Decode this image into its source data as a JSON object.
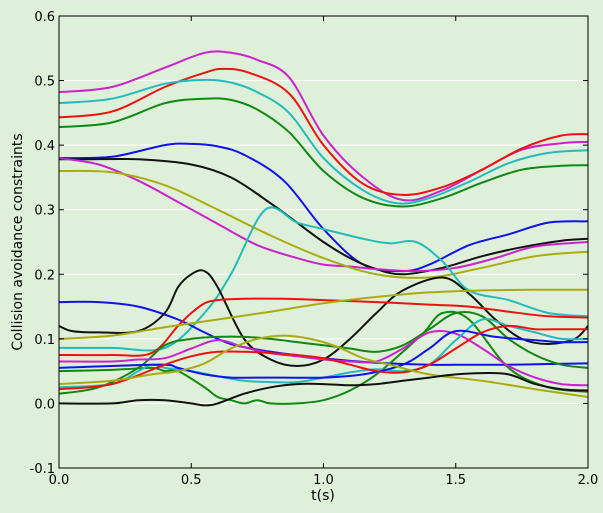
{
  "chart_data": {
    "type": "line",
    "xlabel": "t(s)",
    "ylabel": "Collision avoidance constraints",
    "xlim": [
      0.0,
      2.0
    ],
    "ylim": [
      -0.1,
      0.6
    ],
    "xticks": [
      "0.0",
      "0.5",
      "1.0",
      "1.5",
      "2.0"
    ],
    "yticks": [
      "-0.1",
      "0.0",
      "0.1",
      "0.2",
      "0.3",
      "0.4",
      "0.5",
      "0.6"
    ],
    "grid": true,
    "background": "#dff0da",
    "series": [
      {
        "color": "#cc22cc",
        "x": [
          0,
          0.2,
          0.4,
          0.55,
          0.65,
          0.75,
          0.87,
          1.0,
          1.15,
          1.3,
          1.45,
          1.6,
          1.75,
          1.9,
          2.0
        ],
        "y": [
          0.482,
          0.49,
          0.52,
          0.543,
          0.543,
          0.532,
          0.505,
          0.415,
          0.35,
          0.315,
          0.33,
          0.362,
          0.393,
          0.403,
          0.405
        ]
      },
      {
        "color": "#ee1111",
        "x": [
          0,
          0.2,
          0.4,
          0.55,
          0.62,
          0.72,
          0.87,
          1.0,
          1.15,
          1.3,
          1.45,
          1.6,
          1.75,
          1.9,
          2.0
        ],
        "y": [
          0.443,
          0.452,
          0.49,
          0.512,
          0.518,
          0.512,
          0.48,
          0.4,
          0.34,
          0.323,
          0.335,
          0.362,
          0.395,
          0.415,
          0.417
        ]
      },
      {
        "color": "#22bbbb",
        "x": [
          0,
          0.2,
          0.4,
          0.55,
          0.65,
          0.75,
          0.87,
          1.0,
          1.15,
          1.28,
          1.4,
          1.55,
          1.7,
          1.85,
          2.0
        ],
        "y": [
          0.465,
          0.472,
          0.495,
          0.501,
          0.497,
          0.482,
          0.45,
          0.38,
          0.33,
          0.31,
          0.318,
          0.343,
          0.372,
          0.388,
          0.392
        ]
      },
      {
        "color": "#118811",
        "x": [
          0,
          0.2,
          0.4,
          0.55,
          0.65,
          0.75,
          0.87,
          1.0,
          1.15,
          1.3,
          1.45,
          1.6,
          1.75,
          1.9,
          2.0
        ],
        "y": [
          0.428,
          0.435,
          0.465,
          0.472,
          0.47,
          0.455,
          0.42,
          0.36,
          0.318,
          0.305,
          0.318,
          0.342,
          0.362,
          0.368,
          0.369
        ]
      },
      {
        "color": "#1111ee",
        "x": [
          0,
          0.2,
          0.4,
          0.5,
          0.6,
          0.7,
          0.85,
          1.0,
          1.15,
          1.3,
          1.4,
          1.55,
          1.7,
          1.85,
          2.0
        ],
        "y": [
          0.38,
          0.382,
          0.4,
          0.402,
          0.398,
          0.385,
          0.345,
          0.27,
          0.215,
          0.205,
          0.215,
          0.245,
          0.262,
          0.28,
          0.282
        ]
      },
      {
        "color": "#111111",
        "x": [
          0,
          0.1,
          0.3,
          0.5,
          0.65,
          0.8,
          0.9,
          1.0,
          1.1,
          1.2,
          1.3,
          1.45,
          1.6,
          1.75,
          1.9,
          2.0
        ],
        "y": [
          0.378,
          0.378,
          0.378,
          0.37,
          0.35,
          0.31,
          0.28,
          0.25,
          0.225,
          0.208,
          0.2,
          0.21,
          0.228,
          0.242,
          0.252,
          0.255
        ]
      },
      {
        "color": "#cc22cc",
        "x": [
          0,
          0.15,
          0.3,
          0.45,
          0.6,
          0.75,
          0.9,
          1.0,
          1.1,
          1.2,
          1.35,
          1.5,
          1.65,
          1.8,
          2.0
        ],
        "y": [
          0.38,
          0.37,
          0.345,
          0.312,
          0.278,
          0.245,
          0.225,
          0.215,
          0.212,
          0.208,
          0.205,
          0.21,
          0.225,
          0.243,
          0.25
        ]
      },
      {
        "color": "#aaaa11",
        "x": [
          0,
          0.2,
          0.4,
          0.6,
          0.8,
          1.0,
          1.2,
          1.4,
          1.6,
          1.8,
          2.0
        ],
        "y": [
          0.36,
          0.358,
          0.338,
          0.3,
          0.26,
          0.225,
          0.2,
          0.195,
          0.21,
          0.228,
          0.235
        ]
      },
      {
        "color": "#22bbbb",
        "x": [
          0,
          0.2,
          0.4,
          0.55,
          0.65,
          0.78,
          0.9,
          1.0,
          1.15,
          1.25,
          1.35,
          1.45,
          1.55,
          1.7,
          1.85,
          2.0
        ],
        "y": [
          0.086,
          0.086,
          0.086,
          0.14,
          0.2,
          0.3,
          0.28,
          0.27,
          0.255,
          0.248,
          0.25,
          0.22,
          0.175,
          0.16,
          0.14,
          0.135
        ]
      },
      {
        "color": "#1111ee",
        "x": [
          0,
          0.15,
          0.3,
          0.45,
          0.55,
          0.65,
          0.8,
          1.0,
          1.2,
          1.4,
          1.55,
          1.7,
          1.85,
          2.0
        ],
        "y": [
          0.157,
          0.157,
          0.15,
          0.13,
          0.11,
          0.092,
          0.08,
          0.07,
          0.063,
          0.06,
          0.06,
          0.06,
          0.061,
          0.062
        ]
      },
      {
        "color": "#111111",
        "x": [
          0,
          0.05,
          0.15,
          0.3,
          0.4,
          0.45,
          0.5,
          0.55,
          0.6,
          0.7,
          0.8,
          0.9,
          1.0,
          1.1,
          1.2,
          1.3,
          1.45,
          1.55,
          1.65,
          1.75,
          1.85,
          1.95,
          2.0
        ],
        "y": [
          0.12,
          0.112,
          0.11,
          0.112,
          0.14,
          0.18,
          0.2,
          0.205,
          0.18,
          0.1,
          0.068,
          0.058,
          0.068,
          0.1,
          0.14,
          0.175,
          0.195,
          0.17,
          0.13,
          0.1,
          0.092,
          0.1,
          0.12
        ]
      },
      {
        "color": "#ee1111",
        "x": [
          0,
          0.2,
          0.35,
          0.45,
          0.5,
          0.55,
          0.6,
          0.7,
          0.85,
          1.0,
          1.2,
          1.4,
          1.55,
          1.7,
          1.85,
          2.0
        ],
        "y": [
          0.075,
          0.075,
          0.078,
          0.12,
          0.14,
          0.155,
          0.16,
          0.162,
          0.162,
          0.16,
          0.157,
          0.153,
          0.15,
          0.142,
          0.135,
          0.133
        ]
      },
      {
        "color": "#aaaa11",
        "x": [
          0,
          0.2,
          0.4,
          0.6,
          0.8,
          1.0,
          1.2,
          1.4,
          1.6,
          1.8,
          2.0
        ],
        "y": [
          0.1,
          0.105,
          0.118,
          0.13,
          0.142,
          0.155,
          0.165,
          0.172,
          0.175,
          0.176,
          0.176
        ]
      },
      {
        "color": "#118811",
        "x": [
          0,
          0.15,
          0.3,
          0.4,
          0.5,
          0.6,
          0.7,
          0.8,
          0.9,
          1.0,
          1.1,
          1.2,
          1.3,
          1.4,
          1.5,
          1.6,
          1.7,
          1.8,
          1.9,
          2.0
        ],
        "y": [
          0.015,
          0.025,
          0.055,
          0.09,
          0.1,
          0.103,
          0.103,
          0.1,
          0.095,
          0.09,
          0.085,
          0.08,
          0.09,
          0.115,
          0.14,
          0.135,
          0.1,
          0.075,
          0.06,
          0.055
        ]
      },
      {
        "color": "#118811",
        "x": [
          0,
          0.2,
          0.35,
          0.4,
          0.45,
          0.55,
          0.6,
          0.65,
          0.7,
          0.75,
          0.8,
          0.9,
          1.0,
          1.1,
          1.2,
          1.3,
          1.38,
          1.45,
          1.55,
          1.7,
          1.85,
          2.0
        ],
        "y": [
          0.05,
          0.052,
          0.055,
          0.05,
          0.05,
          0.025,
          0.01,
          0.005,
          0.0,
          0.005,
          0.0,
          0.0,
          0.005,
          0.02,
          0.045,
          0.08,
          0.11,
          0.14,
          0.13,
          0.055,
          0.025,
          0.018
        ]
      },
      {
        "color": "#cc22cc",
        "x": [
          0,
          0.2,
          0.3,
          0.4,
          0.5,
          0.6,
          0.7,
          0.8,
          0.9,
          1.0,
          1.1,
          1.2,
          1.3,
          1.4,
          1.5,
          1.6,
          1.7,
          1.8,
          1.9,
          2.0
        ],
        "y": [
          0.065,
          0.065,
          0.068,
          0.07,
          0.085,
          0.098,
          0.087,
          0.078,
          0.073,
          0.068,
          0.065,
          0.065,
          0.085,
          0.11,
          0.108,
          0.085,
          0.058,
          0.04,
          0.03,
          0.028
        ]
      },
      {
        "color": "#22bbbb",
        "x": [
          0,
          0.2,
          0.3,
          0.35,
          0.4,
          0.5,
          0.6,
          0.7,
          0.8,
          0.9,
          1.0,
          1.1,
          1.2,
          1.3,
          1.4,
          1.5,
          1.6,
          1.7,
          1.8,
          1.9,
          2.0
        ],
        "y": [
          0.025,
          0.03,
          0.05,
          0.06,
          0.055,
          0.05,
          0.042,
          0.035,
          0.033,
          0.033,
          0.04,
          0.048,
          0.053,
          0.05,
          0.06,
          0.098,
          0.13,
          0.12,
          0.11,
          0.1,
          0.1
        ]
      },
      {
        "color": "#1111ee",
        "x": [
          0,
          0.2,
          0.4,
          0.45,
          0.55,
          0.65,
          0.75,
          0.85,
          1.0,
          1.15,
          1.3,
          1.4,
          1.5,
          1.65,
          1.8,
          1.9,
          2.0
        ],
        "y": [
          0.055,
          0.058,
          0.06,
          0.055,
          0.045,
          0.04,
          0.04,
          0.04,
          0.04,
          0.045,
          0.06,
          0.085,
          0.112,
          0.103,
          0.098,
          0.095,
          0.095
        ]
      },
      {
        "color": "#ee1111",
        "x": [
          0,
          0.2,
          0.4,
          0.5,
          0.6,
          0.7,
          0.8,
          0.9,
          1.0,
          1.1,
          1.2,
          1.3,
          1.4,
          1.5,
          1.6,
          1.7,
          1.8,
          1.9,
          2.0
        ],
        "y": [
          0.022,
          0.03,
          0.06,
          0.073,
          0.08,
          0.08,
          0.078,
          0.075,
          0.07,
          0.06,
          0.05,
          0.048,
          0.06,
          0.085,
          0.11,
          0.12,
          0.115,
          0.115,
          0.115
        ]
      },
      {
        "color": "#aaaa11",
        "x": [
          0,
          0.2,
          0.35,
          0.45,
          0.55,
          0.65,
          0.75,
          0.85,
          0.95,
          1.05,
          1.15,
          1.25,
          1.4,
          1.6,
          1.8,
          2.0
        ],
        "y": [
          0.03,
          0.035,
          0.045,
          0.05,
          0.062,
          0.085,
          0.1,
          0.105,
          0.1,
          0.088,
          0.07,
          0.06,
          0.045,
          0.035,
          0.022,
          0.01
        ]
      },
      {
        "color": "#111111",
        "x": [
          0,
          0.2,
          0.3,
          0.4,
          0.5,
          0.55,
          0.6,
          0.7,
          0.8,
          0.9,
          1.0,
          1.1,
          1.2,
          1.3,
          1.4,
          1.5,
          1.6,
          1.7,
          1.8,
          1.9,
          2.0
        ],
        "y": [
          0.0,
          0.0,
          0.005,
          0.005,
          0.0,
          -0.003,
          0.0,
          0.015,
          0.025,
          0.03,
          0.03,
          0.028,
          0.03,
          0.035,
          0.04,
          0.045,
          0.047,
          0.045,
          0.03,
          0.022,
          0.02
        ]
      }
    ]
  }
}
